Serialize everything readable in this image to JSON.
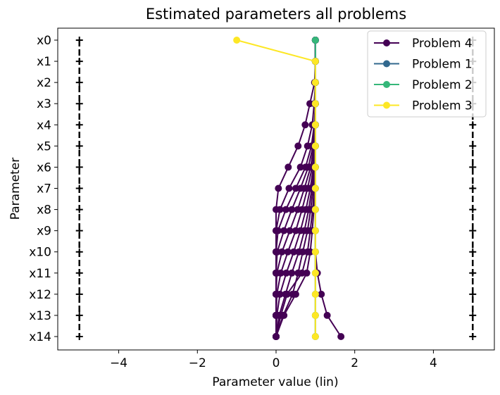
{
  "chart_data": {
    "type": "line",
    "title": "Estimated parameters all problems",
    "xlabel": "Parameter value (lin)",
    "ylabel": "Parameter",
    "xlim": [
      -5.55,
      5.55
    ],
    "xticks": [
      -4,
      -2,
      0,
      2,
      4
    ],
    "xtick_labels": [
      "−4",
      "−2",
      "0",
      "2",
      "4"
    ],
    "categories": [
      "x0",
      "x1",
      "x2",
      "x3",
      "x4",
      "x5",
      "x6",
      "x7",
      "x8",
      "x9",
      "x10",
      "x11",
      "x12",
      "x13",
      "x14"
    ],
    "bounds": {
      "lower": -5,
      "upper": 5,
      "color": "#000000",
      "style": "dashed",
      "marker": "+"
    },
    "legend_position": "top-right",
    "grid": false,
    "series": [
      {
        "name": "Problem 4",
        "color": "#440154",
        "traces": [
          [
            1,
            1,
            0.98,
            0.86,
            0.74,
            0.56,
            0.31,
            0.06,
            0,
            0,
            0,
            0,
            0,
            0,
            0
          ],
          [
            1,
            1,
            1,
            0.97,
            0.92,
            0.8,
            0.62,
            0.33,
            0.1,
            0,
            0,
            0,
            0,
            0,
            0
          ],
          [
            1,
            1,
            1,
            1,
            0.97,
            0.9,
            0.75,
            0.5,
            0.25,
            0.05,
            0,
            0,
            0,
            0,
            0
          ],
          [
            1,
            1,
            1,
            1,
            0.98,
            0.94,
            0.82,
            0.62,
            0.4,
            0.2,
            0.03,
            0,
            0,
            0,
            0
          ],
          [
            1,
            1,
            1,
            1,
            1,
            0.96,
            0.88,
            0.72,
            0.55,
            0.35,
            0.15,
            0.02,
            0,
            0,
            0
          ],
          [
            1,
            1,
            1,
            1,
            1,
            0.98,
            0.92,
            0.8,
            0.66,
            0.5,
            0.3,
            0.12,
            0.02,
            0,
            0
          ],
          [
            1,
            1,
            1,
            1,
            1,
            1,
            0.95,
            0.87,
            0.76,
            0.62,
            0.45,
            0.26,
            0.1,
            0.02,
            0
          ],
          [
            1,
            1,
            1,
            1,
            1,
            1,
            0.97,
            0.91,
            0.83,
            0.72,
            0.58,
            0.4,
            0.24,
            0.08,
            0
          ],
          [
            1,
            1,
            1,
            1,
            1,
            1,
            0.98,
            0.94,
            0.88,
            0.8,
            0.68,
            0.56,
            0.42,
            0.18,
            0
          ],
          [
            1,
            1,
            1,
            1,
            1,
            1,
            1,
            0.97,
            0.93,
            0.87,
            0.8,
            0.66,
            0.28,
            0.12,
            0
          ],
          [
            1,
            1,
            1,
            1,
            1,
            1,
            1,
            0.98,
            0.96,
            0.92,
            0.87,
            0.78,
            0.5,
            0.2,
            0
          ],
          [
            1,
            1,
            1,
            1,
            1,
            1,
            1,
            1,
            1,
            1,
            1,
            1.05,
            1.15,
            1.3,
            1.65
          ]
        ]
      },
      {
        "name": "Problem 1",
        "color": "#31688e",
        "traces": [
          [
            1,
            1,
            1,
            1,
            1,
            1,
            1,
            1,
            1,
            1,
            1,
            1,
            1,
            1,
            1
          ]
        ]
      },
      {
        "name": "Problem 2",
        "color": "#35b779",
        "traces": [
          [
            1,
            1,
            1,
            1,
            1,
            1,
            1,
            1,
            1,
            1,
            1,
            1,
            1,
            1,
            1
          ]
        ]
      },
      {
        "name": "Problem 3",
        "color": "#fde725",
        "traces": [
          [
            -1,
            1,
            1,
            1,
            1,
            1,
            1,
            1,
            1,
            1,
            1,
            1,
            1,
            1,
            1
          ]
        ]
      }
    ]
  }
}
